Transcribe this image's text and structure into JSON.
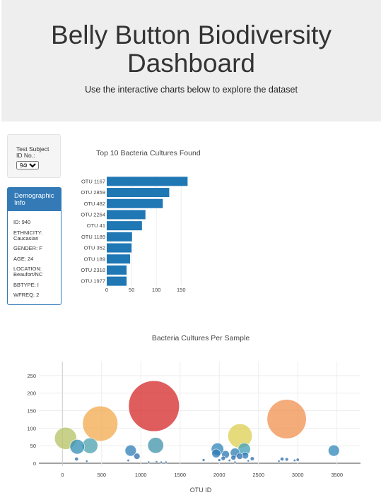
{
  "header": {
    "title_line1": "Belly Button Biodiversity",
    "title_line2": "Dashboard",
    "subtitle": "Use the interactive charts below to explore the dataset"
  },
  "selector": {
    "label": "Test Subject ID No.:",
    "selected": "940"
  },
  "demographic": {
    "heading": "Demographic Info",
    "items": [
      "ID: 940",
      "ETHNICITY: Caucasian",
      "GENDER: F",
      "AGE: 24",
      "LOCATION: Beaufort/NC",
      "BBTYPE: I",
      "WFREQ: 2"
    ]
  },
  "colors": {
    "bar": "#1f77b4",
    "panel": "#337ab7",
    "jumbotron": "#eeeeee"
  },
  "chart_data": [
    {
      "type": "bar",
      "orientation": "horizontal",
      "title": "Top 10 Bacteria Cultures Found",
      "categories": [
        "OTU 1167",
        "OTU 2859",
        "OTU 482",
        "OTU 2264",
        "OTU 41",
        "OTU 1189",
        "OTU 352",
        "OTU 189",
        "OTU 2318",
        "OTU 1977"
      ],
      "values": [
        163,
        126,
        113,
        78,
        71,
        51,
        50,
        47,
        40,
        40
      ],
      "xticks": [
        0,
        50,
        100,
        150
      ],
      "xlim": [
        0,
        171
      ]
    },
    {
      "type": "scatter",
      "title": "Bacteria Cultures Per Sample",
      "xlabel": "OTU ID",
      "xticks": [
        0,
        500,
        1000,
        1500,
        2000,
        2500,
        3000,
        3500
      ],
      "yticks": [
        0,
        50,
        100,
        150,
        200,
        250
      ],
      "xlim": [
        -300,
        3800
      ],
      "ylim": [
        -8,
        290
      ],
      "points": [
        {
          "x": 1167,
          "y": 163,
          "c": "#d62728"
        },
        {
          "x": 2859,
          "y": 126,
          "c": "#f0904f"
        },
        {
          "x": 482,
          "y": 113,
          "c": "#f2a94d"
        },
        {
          "x": 2264,
          "y": 78,
          "c": "#dccd50"
        },
        {
          "x": 41,
          "y": 71,
          "c": "#b5c162"
        },
        {
          "x": 1189,
          "y": 51,
          "c": "#3f93aa"
        },
        {
          "x": 352,
          "y": 50,
          "c": "#4aa0ae"
        },
        {
          "x": 189,
          "y": 47,
          "c": "#2f8db3"
        },
        {
          "x": 2318,
          "y": 40,
          "c": "#3f9fb5"
        },
        {
          "x": 1977,
          "y": 40,
          "c": "#2f86b8"
        },
        {
          "x": 3460,
          "y": 36,
          "c": "#2f86b8"
        },
        {
          "x": 870,
          "y": 36,
          "c": "#2b7db6"
        },
        {
          "x": 2200,
          "y": 30,
          "c": "#2b7db6"
        },
        {
          "x": 1960,
          "y": 28,
          "c": "#2b77b4"
        },
        {
          "x": 2080,
          "y": 25,
          "c": "#2b77b4"
        },
        {
          "x": 2330,
          "y": 22,
          "c": "#2b77b4"
        },
        {
          "x": 2260,
          "y": 20,
          "c": "#2b6cac"
        },
        {
          "x": 950,
          "y": 20,
          "c": "#2b6cac"
        },
        {
          "x": 2050,
          "y": 14,
          "c": "#2b6cac"
        },
        {
          "x": 2180,
          "y": 16,
          "c": "#2b6cac"
        },
        {
          "x": 2420,
          "y": 13,
          "c": "#2b6cac"
        },
        {
          "x": 2800,
          "y": 12,
          "c": "#2b6cac"
        },
        {
          "x": 2860,
          "y": 11,
          "c": "#2b6cac"
        },
        {
          "x": 3000,
          "y": 10,
          "c": "#2b6cac"
        },
        {
          "x": 180,
          "y": 12,
          "c": "#2b6cac"
        },
        {
          "x": 1800,
          "y": 9,
          "c": "#2b6cac"
        },
        {
          "x": 2000,
          "y": 9,
          "c": "#2b6cac"
        },
        {
          "x": 2130,
          "y": 8,
          "c": "#2b6cac"
        },
        {
          "x": 2370,
          "y": 7,
          "c": "#2b6cac"
        },
        {
          "x": 2960,
          "y": 8,
          "c": "#2b6cac"
        },
        {
          "x": 2760,
          "y": 6,
          "c": "#2b6cac"
        },
        {
          "x": 840,
          "y": 8,
          "c": "#2b6cac"
        },
        {
          "x": 310,
          "y": 6,
          "c": "#2b6cac"
        },
        {
          "x": 1200,
          "y": 4,
          "c": "#2b6cac"
        },
        {
          "x": 1260,
          "y": 3,
          "c": "#2b6cac"
        },
        {
          "x": 1320,
          "y": 3,
          "c": "#2b6cac"
        },
        {
          "x": 1100,
          "y": 3,
          "c": "#2b6cac"
        },
        {
          "x": 2200,
          "y": 3,
          "c": "#2b6cac"
        }
      ]
    }
  ]
}
